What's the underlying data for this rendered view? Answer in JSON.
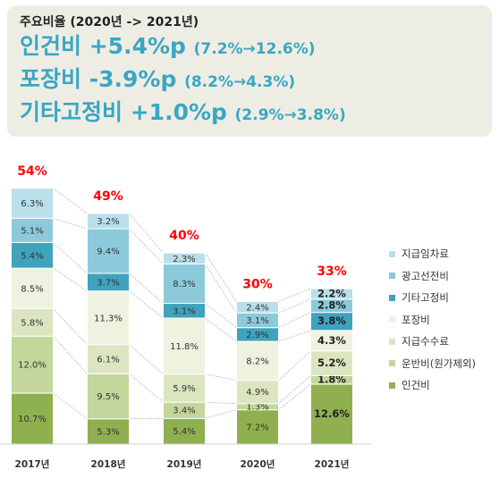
{
  "summary": {
    "heading": "주요비율 (2020년 -> 2021년)",
    "lines": [
      {
        "label": "인건비",
        "change": "+5.4%p",
        "detail": "(7.2%→12.6%)"
      },
      {
        "label": "포장비",
        "change": "-3.9%p",
        "detail": "(8.2%→4.3%)"
      },
      {
        "label": "기타고정비",
        "change": "+1.0%p",
        "detail": "(2.9%→3.8%)"
      }
    ]
  },
  "chart_data": {
    "type": "bar",
    "stacked": true,
    "categories": [
      "2017년",
      "2018년",
      "2019년",
      "2020년",
      "2021년"
    ],
    "totals": [
      54,
      49,
      40,
      30,
      33
    ],
    "total_labels": [
      "54%",
      "49%",
      "40%",
      "30%",
      "33%"
    ],
    "series": [
      {
        "name": "인건비",
        "color": "#8fb04e",
        "values": [
          10.7,
          5.3,
          5.4,
          7.2,
          12.6
        ]
      },
      {
        "name": "운반비(원가제외)",
        "color": "#c3d69b",
        "values": [
          12.0,
          9.5,
          3.4,
          1.3,
          1.8
        ]
      },
      {
        "name": "지급수수료",
        "color": "#dbe5bf",
        "values": [
          5.8,
          6.1,
          5.9,
          4.9,
          5.2
        ]
      },
      {
        "name": "포장비",
        "color": "#eef2df",
        "values": [
          8.5,
          11.3,
          11.8,
          8.2,
          4.3
        ]
      },
      {
        "name": "기타고정비",
        "color": "#3fa3bd",
        "values": [
          5.4,
          3.7,
          3.1,
          2.9,
          3.8
        ]
      },
      {
        "name": "광고선전비",
        "color": "#8ccadb",
        "values": [
          5.1,
          9.4,
          8.3,
          3.1,
          2.8
        ]
      },
      {
        "name": "지급임차료",
        "color": "#b8dfea",
        "values": [
          6.3,
          3.2,
          2.3,
          2.4,
          2.2
        ]
      }
    ],
    "label_texts": [
      [
        "10.7%",
        "5.3%",
        "5.4%",
        "7.2%",
        "12.6%"
      ],
      [
        "12.0%",
        "9.5%",
        "3.4%",
        "1.3%",
        "1.8%"
      ],
      [
        "5.8%",
        "6.1%",
        "5.9%",
        "4.9%",
        "5.2%"
      ],
      [
        "8.5%",
        "11.3%",
        "11.8%",
        "8.2%",
        "4.3%"
      ],
      [
        "5.4%",
        "3.7%",
        "3.1%",
        "2.9%",
        "3.8%"
      ],
      [
        "5.1%",
        "9.4%",
        "8.3%",
        "3.1%",
        "2.8%"
      ],
      [
        "6.3%",
        "3.2%",
        "2.3%",
        "2.4%",
        "2.2%"
      ]
    ],
    "highlight_category": "2021년",
    "total_label_color": "#ff0000",
    "legend_order": [
      "지급임차료",
      "광고선전비",
      "기타고정비",
      "포장비",
      "지급수수료",
      "운반비(원가제외)",
      "인건비"
    ],
    "legend_position": "right",
    "grid": false
  }
}
